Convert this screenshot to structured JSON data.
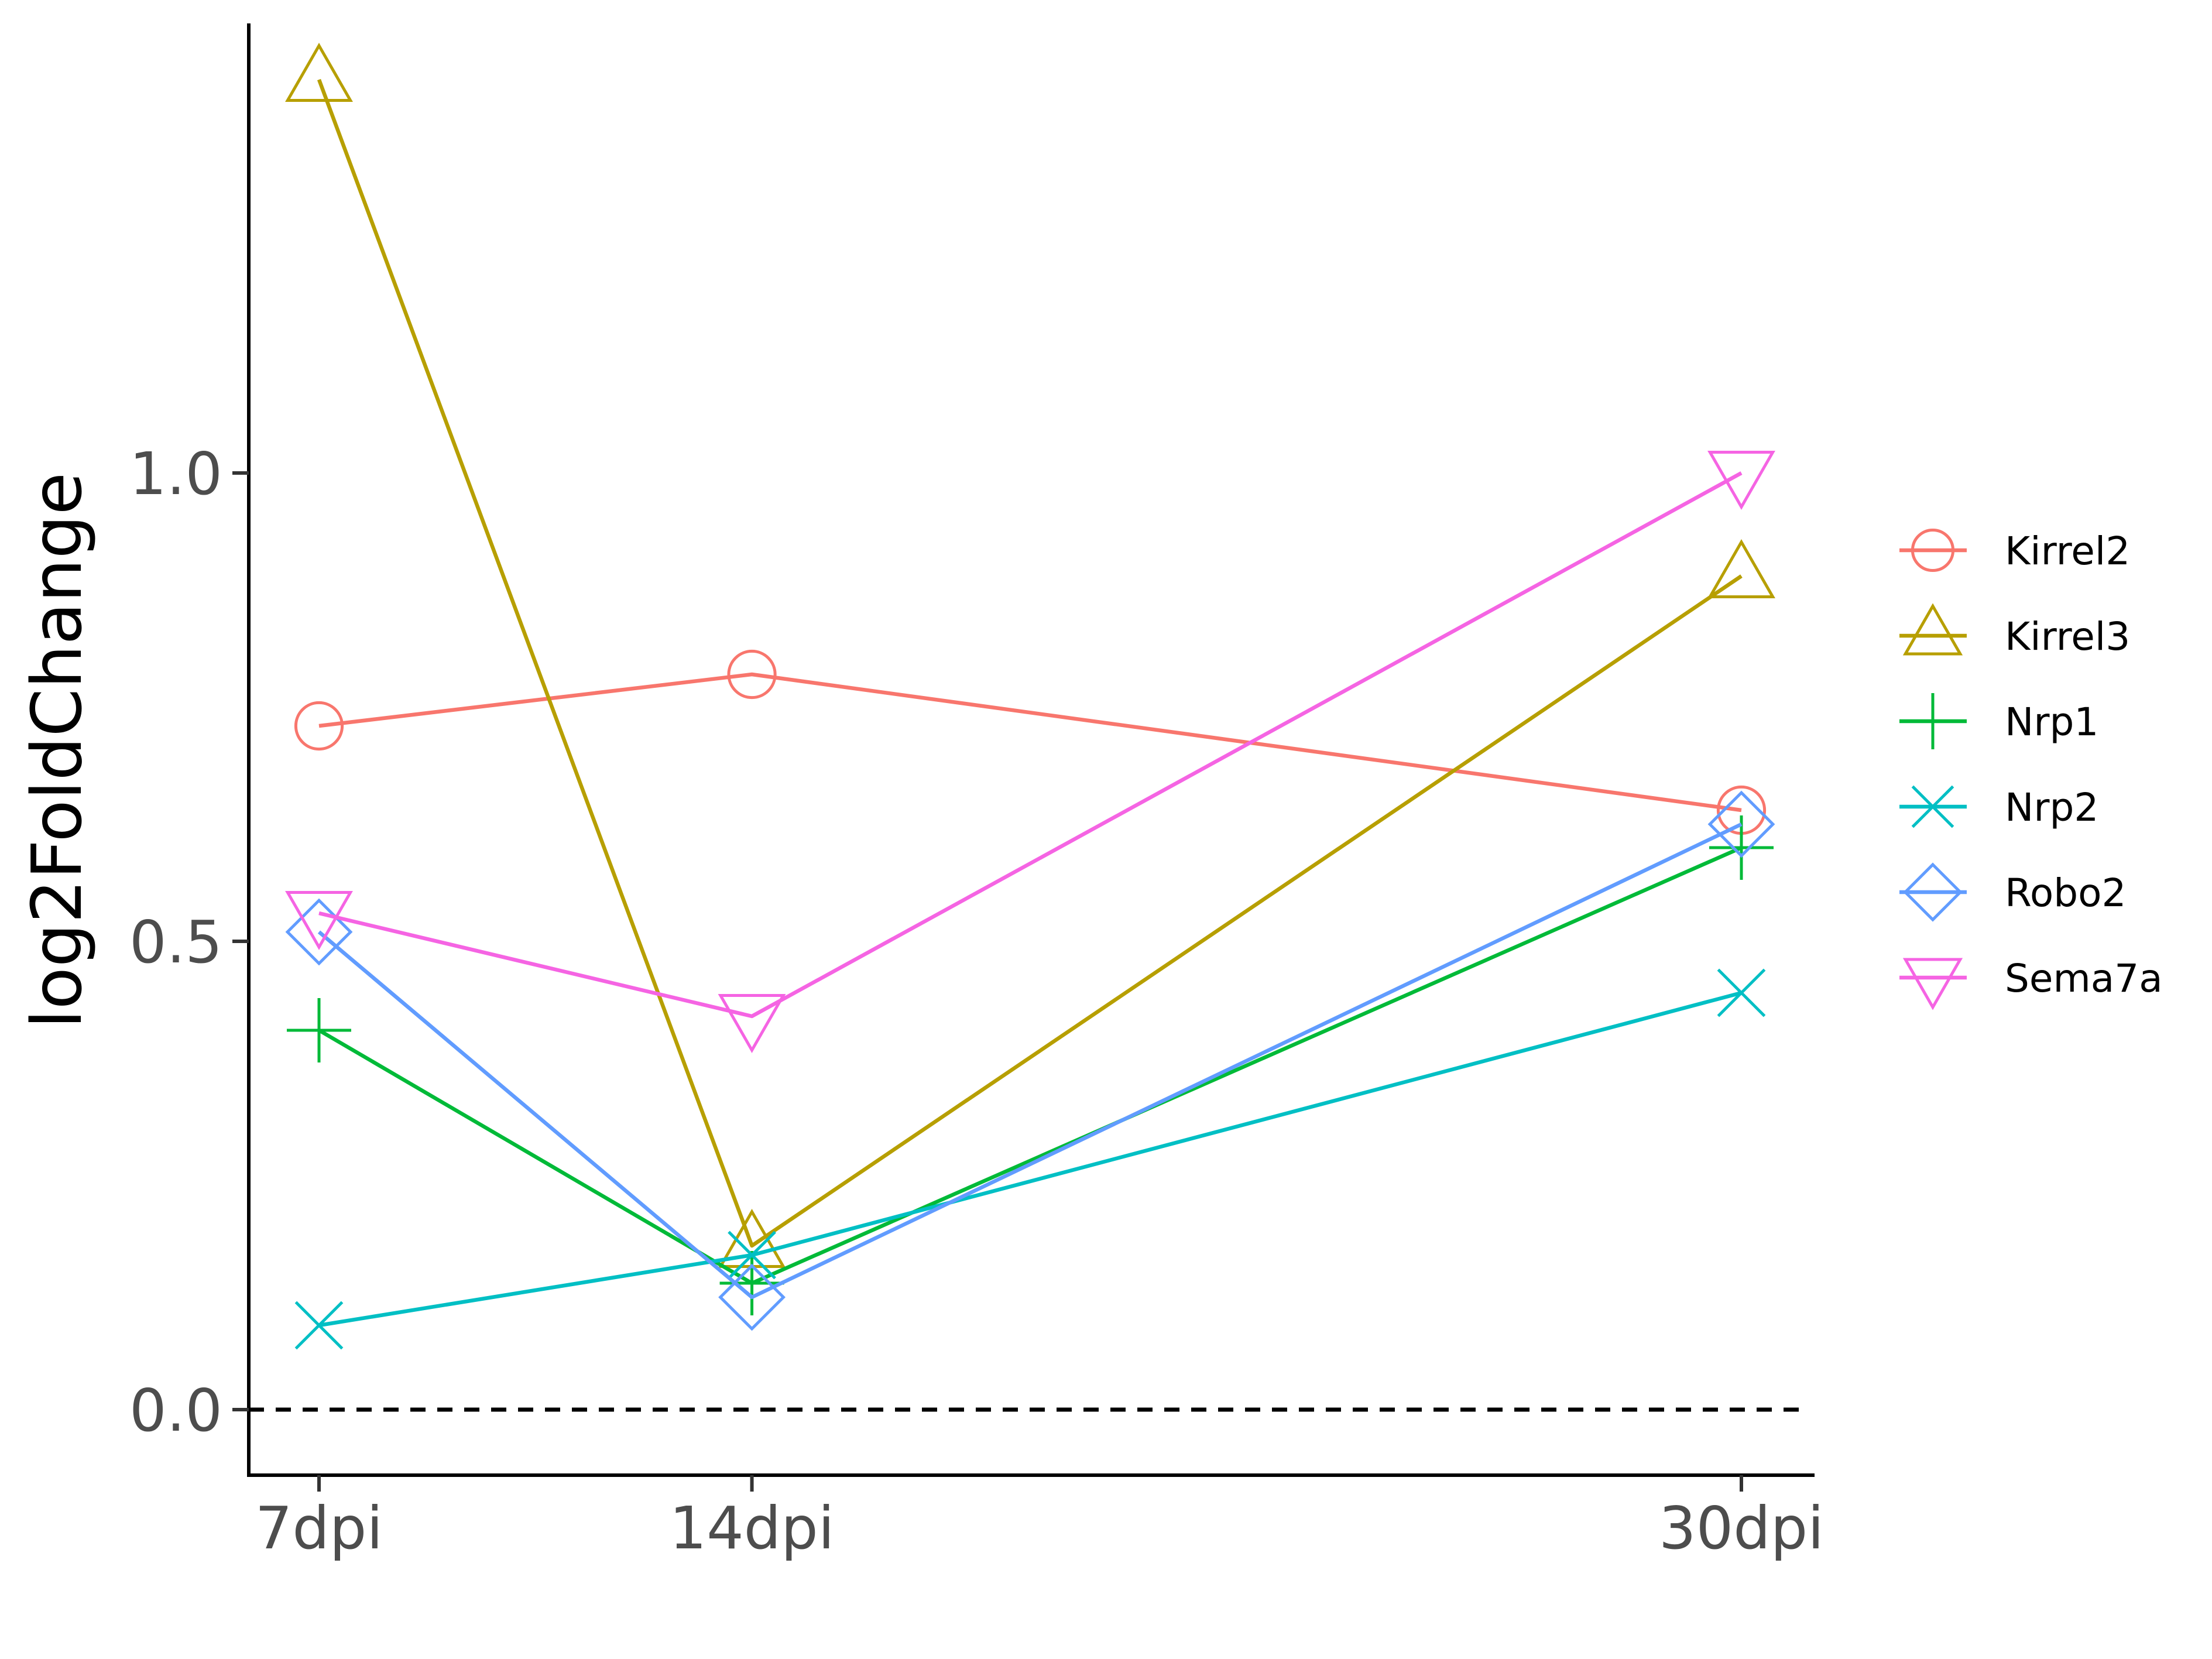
{
  "chart_data": {
    "type": "line",
    "title": "",
    "xlabel": "",
    "ylabel": "log2FoldChange",
    "categories": [
      "7dpi",
      "14dpi",
      "30dpi"
    ],
    "x_days": [
      7,
      14,
      30
    ],
    "y_ticks": [
      0.0,
      0.5,
      1.0
    ],
    "y_tick_labels": [
      "0.0",
      "0.5",
      "1.0"
    ],
    "ylim": [
      -0.07,
      1.48
    ],
    "reference_line": {
      "y": 0.0,
      "style": "dashed",
      "color": "#000000"
    },
    "grid": false,
    "legend": "right",
    "series": [
      {
        "name": "Kirrel2",
        "color": "#F8766D",
        "shape": "circle",
        "values": [
          0.73,
          0.785,
          0.64
        ]
      },
      {
        "name": "Kirrel3",
        "color": "#B79F00",
        "shape": "triangle-up",
        "values": [
          1.42,
          0.175,
          0.89
        ]
      },
      {
        "name": "Nrp1",
        "color": "#00BA38",
        "shape": "plus",
        "values": [
          0.405,
          0.135,
          0.6
        ]
      },
      {
        "name": "Nrp2",
        "color": "#00BFC4",
        "shape": "cross",
        "values": [
          0.09,
          0.165,
          0.445
        ]
      },
      {
        "name": "Robo2",
        "color": "#619CFF",
        "shape": "diamond",
        "values": [
          0.51,
          0.12,
          0.625
        ]
      },
      {
        "name": "Sema7a",
        "color": "#F564E3",
        "shape": "triangle-down",
        "values": [
          0.53,
          0.42,
          1.0
        ]
      }
    ]
  }
}
